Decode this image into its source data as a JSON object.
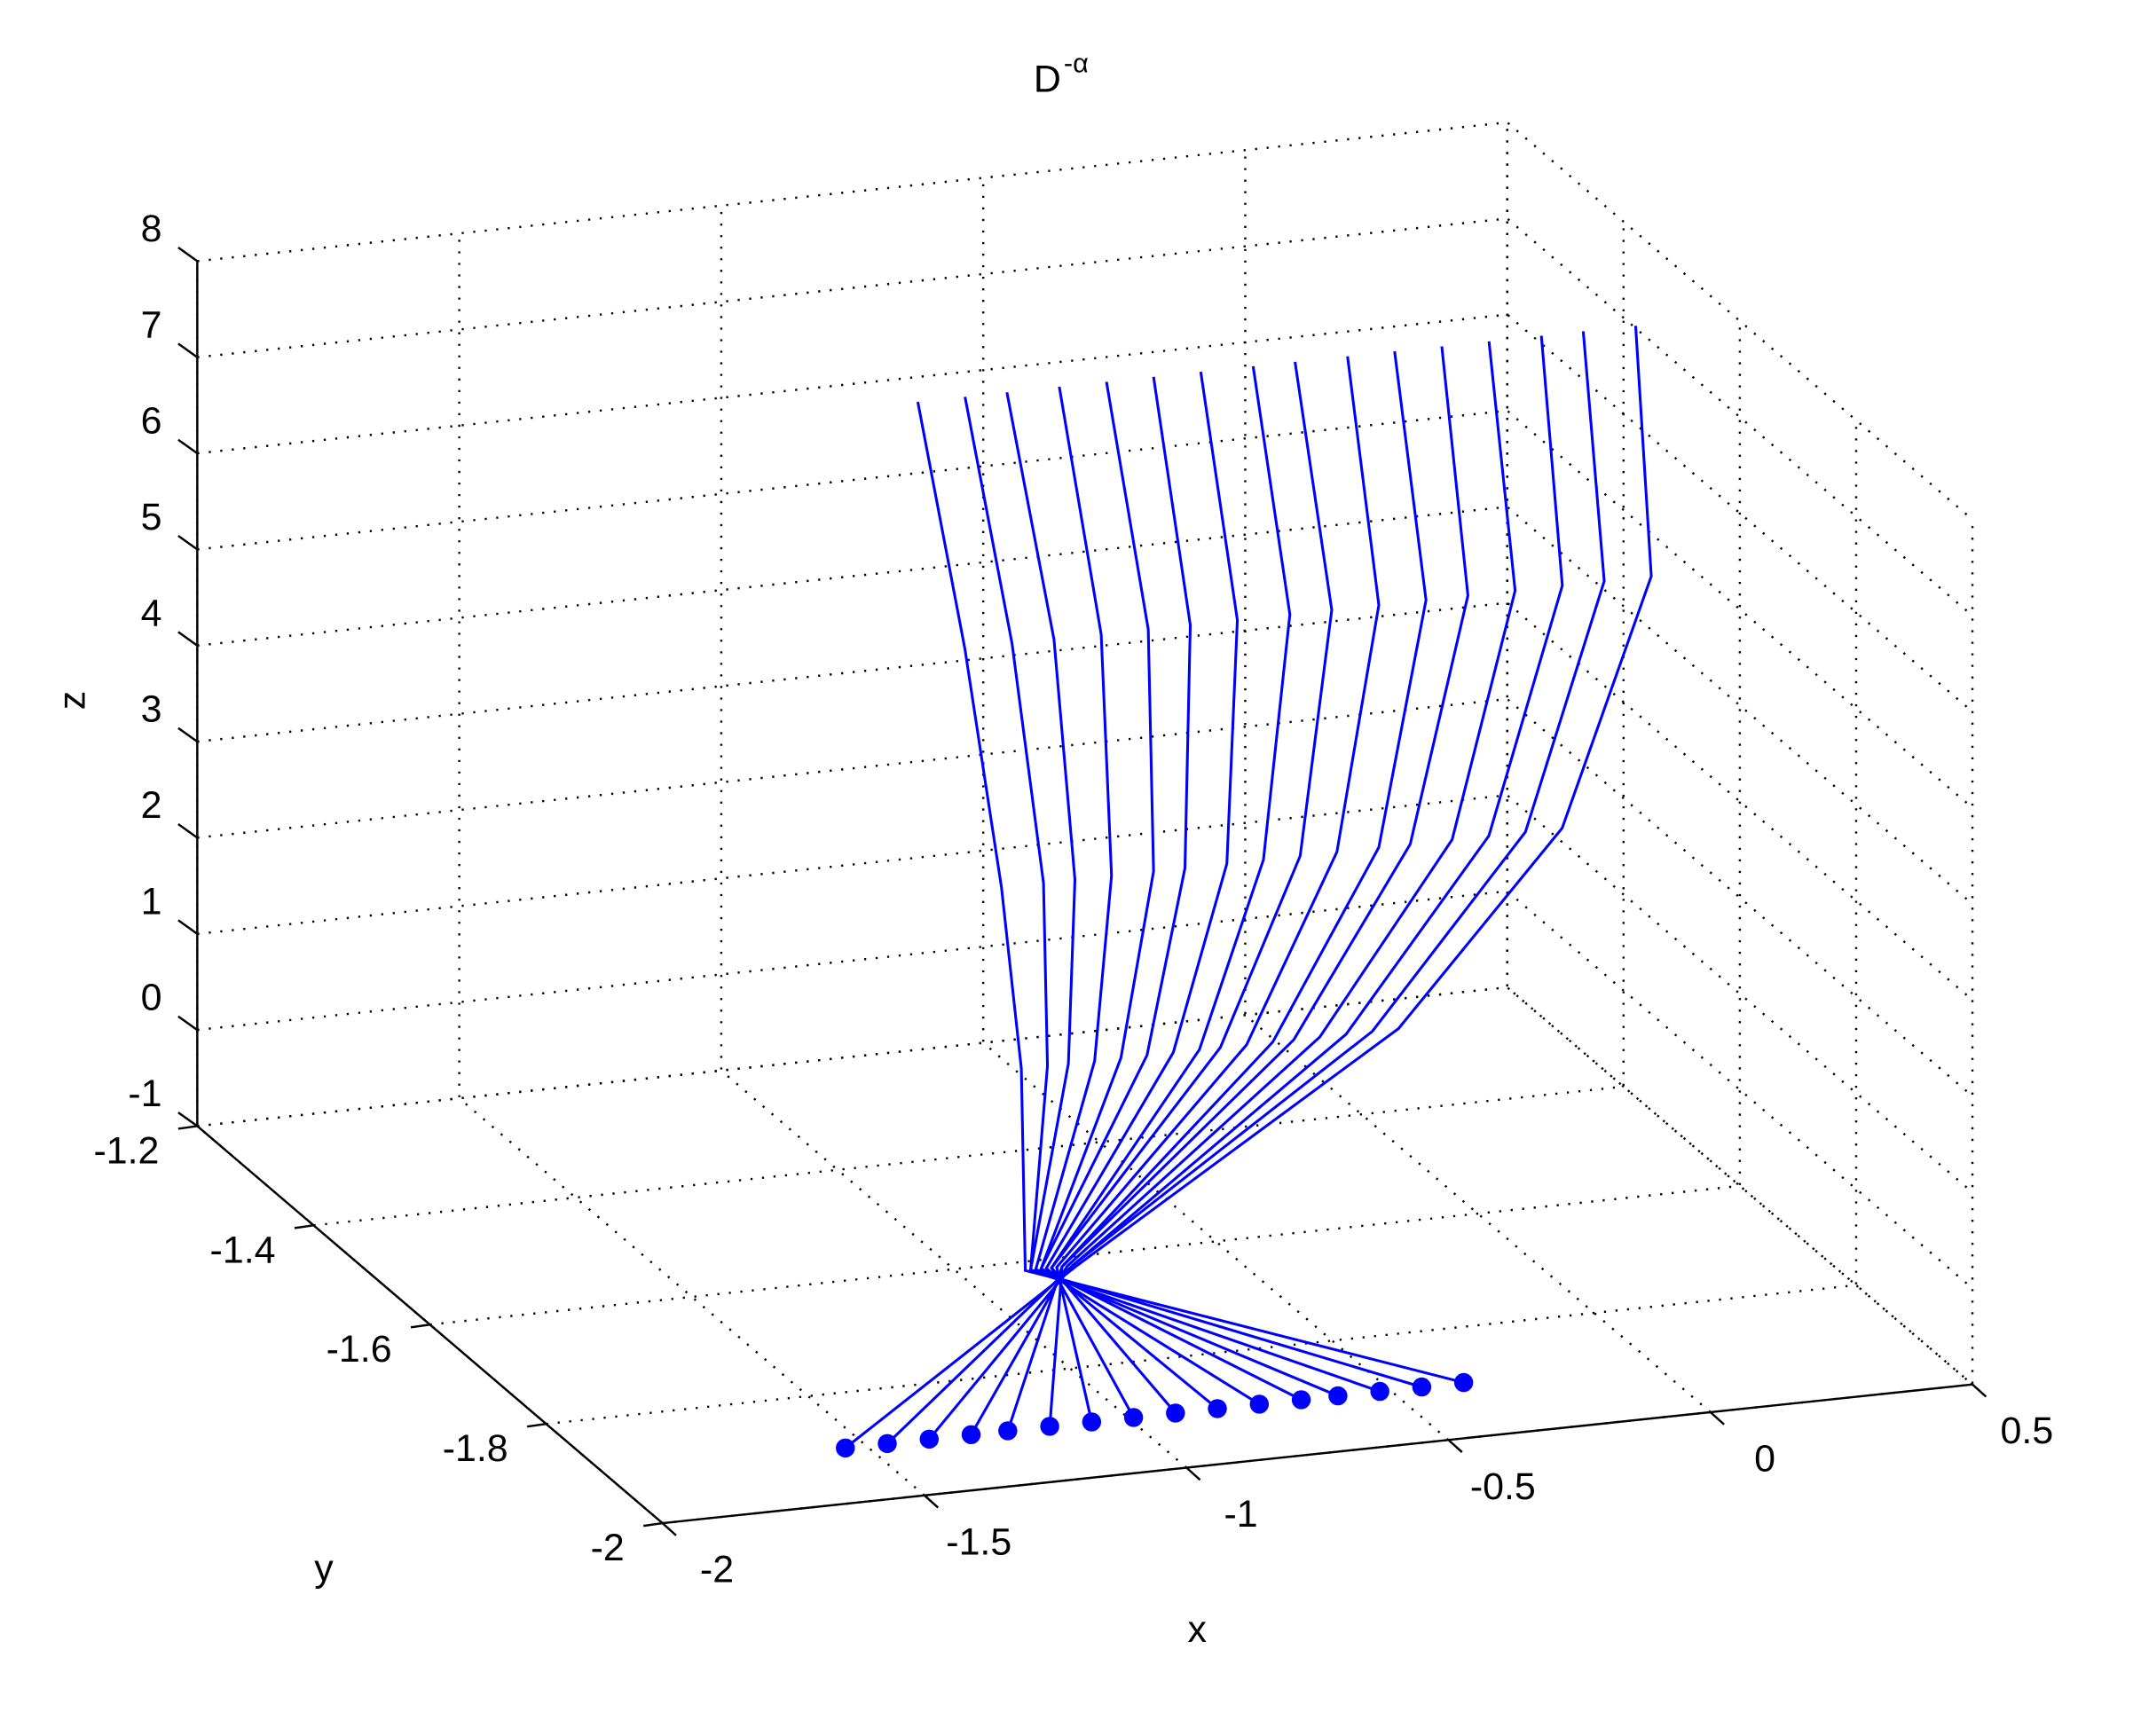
{
  "chart_data": {
    "type": "line3d",
    "title": "D",
    "title_superscript": "-α",
    "xlabel": "x",
    "ylabel": "y",
    "zlabel": "z",
    "xlim": [
      -2,
      0.5
    ],
    "xticks": [
      -2,
      -1.5,
      -1,
      -0.5,
      0,
      0.5
    ],
    "ylim": [
      -2,
      -1.2
    ],
    "yticks": [
      -2,
      -1.8,
      -1.6,
      -1.4,
      -1.2
    ],
    "zlim": [
      -1,
      8
    ],
    "zticks": [
      -1,
      0,
      1,
      2,
      3,
      4,
      5,
      6,
      7,
      8
    ],
    "grid": true,
    "color": "#0000ff",
    "y": [
      -1.9,
      -1.84,
      -1.77,
      -1.7,
      -1.61,
      -1.52
    ],
    "z": [
      -1,
      0.3,
      2,
      3.5,
      5.5,
      7.6
    ],
    "series": [
      {
        "x": [
          -0.36,
          -1.13,
          -1.06,
          -1.02,
          -0.99,
          -0.98
        ]
      },
      {
        "x": [
          -0.44,
          -1.12,
          -1.01,
          -0.94,
          -0.9,
          -0.89
        ]
      },
      {
        "x": [
          -0.52,
          -1.12,
          -0.97,
          -0.88,
          -0.82,
          -0.81
        ]
      },
      {
        "x": [
          -0.6,
          -1.11,
          -0.92,
          -0.81,
          -0.73,
          -0.71
        ]
      },
      {
        "x": [
          -0.67,
          -1.1,
          -0.87,
          -0.73,
          -0.64,
          -0.62
        ]
      },
      {
        "x": [
          -0.75,
          -1.1,
          -0.82,
          -0.67,
          -0.56,
          -0.53
        ]
      },
      {
        "x": [
          -0.83,
          -1.09,
          -0.77,
          -0.59,
          -0.47,
          -0.44
        ]
      },
      {
        "x": [
          -0.91,
          -1.08,
          -0.72,
          -0.52,
          -0.37,
          -0.34
        ]
      },
      {
        "x": [
          -0.99,
          -1.08,
          -0.68,
          -0.45,
          -0.29,
          -0.26
        ]
      },
      {
        "x": [
          -1.07,
          -1.07,
          -0.63,
          -0.38,
          -0.2,
          -0.16
        ]
      },
      {
        "x": [
          -1.15,
          -1.06,
          -0.58,
          -0.3,
          -0.11,
          -0.07
        ]
      },
      {
        "x": [
          -1.23,
          -1.06,
          -0.54,
          -0.24,
          -0.03,
          0.02
        ]
      },
      {
        "x": [
          -1.3,
          -1.05,
          -0.49,
          -0.16,
          0.06,
          0.11
        ]
      },
      {
        "x": [
          -1.38,
          -1.04,
          -0.44,
          -0.09,
          0.15,
          0.21
        ]
      },
      {
        "x": [
          -1.46,
          -1.04,
          -0.39,
          -0.02,
          0.23,
          0.29
        ]
      },
      {
        "x": [
          -1.54,
          -1.03,
          -0.34,
          0.05,
          0.32,
          0.39
        ]
      }
    ]
  }
}
